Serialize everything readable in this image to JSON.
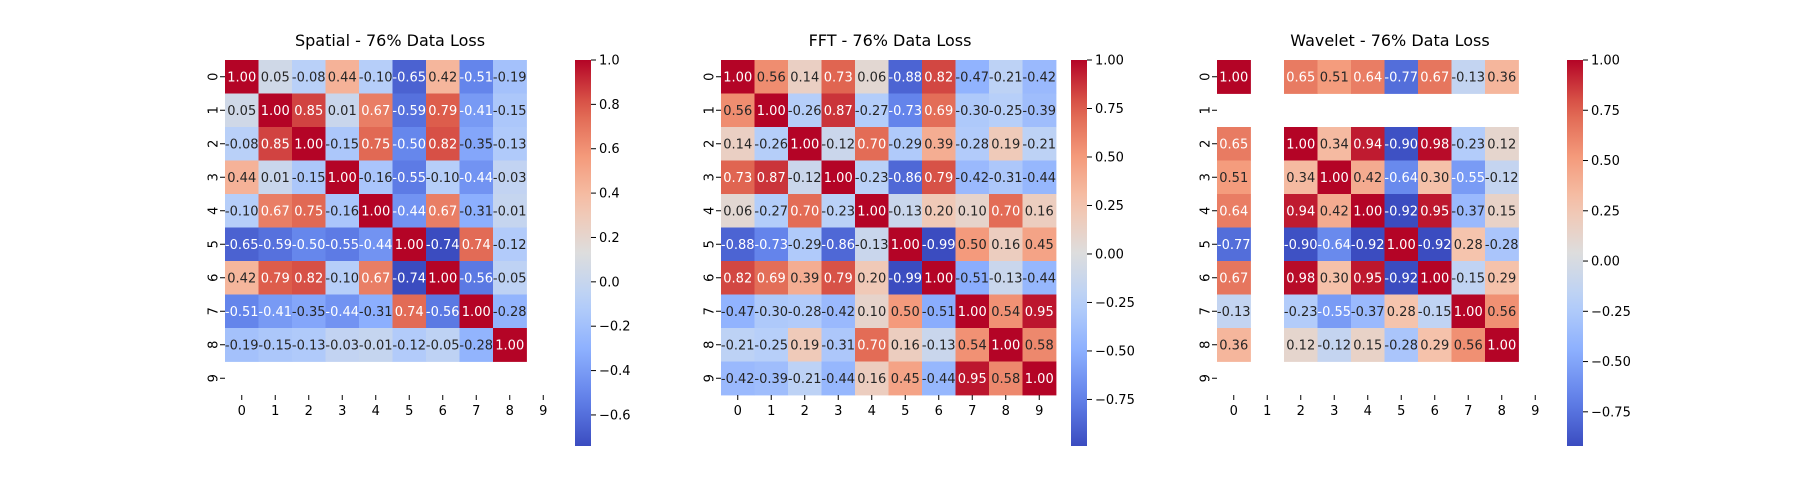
{
  "chart_data": [
    {
      "type": "heatmap",
      "title": "Spatial - 76% Data Loss",
      "categories": [
        "0",
        "1",
        "2",
        "3",
        "4",
        "5",
        "6",
        "7",
        "8",
        "9"
      ],
      "values": [
        [
          1.0,
          0.05,
          -0.08,
          0.44,
          -0.1,
          -0.65,
          0.42,
          -0.51,
          -0.19,
          null
        ],
        [
          0.05,
          1.0,
          0.85,
          0.01,
          0.67,
          -0.59,
          0.79,
          -0.41,
          -0.15,
          null
        ],
        [
          -0.08,
          0.85,
          1.0,
          -0.15,
          0.75,
          -0.5,
          0.82,
          -0.35,
          -0.13,
          null
        ],
        [
          0.44,
          0.01,
          -0.15,
          1.0,
          -0.16,
          -0.55,
          -0.1,
          -0.44,
          -0.03,
          null
        ],
        [
          -0.1,
          0.67,
          0.75,
          -0.16,
          1.0,
          -0.44,
          0.67,
          -0.31,
          -0.01,
          null
        ],
        [
          -0.65,
          -0.59,
          -0.5,
          -0.55,
          -0.44,
          1.0,
          -0.74,
          0.74,
          -0.12,
          null
        ],
        [
          0.42,
          0.79,
          0.82,
          -0.1,
          0.67,
          -0.74,
          1.0,
          -0.56,
          -0.05,
          null
        ],
        [
          -0.51,
          -0.41,
          -0.35,
          -0.44,
          -0.31,
          0.74,
          -0.56,
          1.0,
          -0.28,
          null
        ],
        [
          -0.19,
          -0.15,
          -0.13,
          -0.03,
          -0.01,
          -0.12,
          -0.05,
          -0.28,
          1.0,
          null
        ],
        [
          null,
          null,
          null,
          null,
          null,
          null,
          null,
          null,
          null,
          null
        ]
      ],
      "vmin": -0.74,
      "vmax": 1.0,
      "colorbar_ticks": [
        1.0,
        0.8,
        0.6,
        0.4,
        0.2,
        0.0,
        -0.2,
        -0.4,
        -0.6
      ],
      "colorbar_tick_labels": [
        "1.0",
        "0.8",
        "0.6",
        "0.4",
        "0.2",
        "0.0",
        "−0.2",
        "−0.4",
        "−0.6"
      ],
      "colormap": "coolwarm",
      "annotation_format": "2 decimals"
    },
    {
      "type": "heatmap",
      "title": "FFT - 76% Data Loss",
      "categories": [
        "0",
        "1",
        "2",
        "3",
        "4",
        "5",
        "6",
        "7",
        "8",
        "9"
      ],
      "values": [
        [
          1.0,
          0.56,
          0.14,
          0.73,
          0.06,
          -0.88,
          0.82,
          -0.47,
          -0.21,
          -0.42
        ],
        [
          0.56,
          1.0,
          -0.26,
          0.87,
          -0.27,
          -0.73,
          0.69,
          -0.3,
          -0.25,
          -0.39
        ],
        [
          0.14,
          -0.26,
          1.0,
          -0.12,
          0.7,
          -0.29,
          0.39,
          -0.28,
          0.19,
          -0.21
        ],
        [
          0.73,
          0.87,
          -0.12,
          1.0,
          -0.23,
          -0.86,
          0.79,
          -0.42,
          -0.31,
          -0.44
        ],
        [
          0.06,
          -0.27,
          0.7,
          -0.23,
          1.0,
          -0.13,
          0.2,
          0.1,
          0.7,
          0.16
        ],
        [
          -0.88,
          -0.73,
          -0.29,
          -0.86,
          -0.13,
          1.0,
          -0.99,
          0.5,
          0.16,
          0.45
        ],
        [
          0.82,
          0.69,
          0.39,
          0.79,
          0.2,
          -0.99,
          1.0,
          -0.51,
          -0.13,
          -0.44
        ],
        [
          -0.47,
          -0.3,
          -0.28,
          -0.42,
          0.1,
          0.5,
          -0.51,
          1.0,
          0.54,
          0.95
        ],
        [
          -0.21,
          -0.25,
          0.19,
          -0.31,
          0.7,
          0.16,
          -0.13,
          0.54,
          1.0,
          0.58
        ],
        [
          -0.42,
          -0.39,
          -0.21,
          -0.44,
          0.16,
          0.45,
          -0.44,
          0.95,
          0.58,
          1.0
        ]
      ],
      "vmin": -0.99,
      "vmax": 1.0,
      "colorbar_ticks": [
        1.0,
        0.75,
        0.5,
        0.25,
        0.0,
        -0.25,
        -0.5,
        -0.75
      ],
      "colorbar_tick_labels": [
        "1.00",
        "0.75",
        "0.50",
        "0.25",
        "0.00",
        "−0.25",
        "−0.50",
        "−0.75"
      ],
      "colormap": "coolwarm",
      "annotation_format": "2 decimals"
    },
    {
      "type": "heatmap",
      "title": "Wavelet - 76% Data Loss",
      "categories": [
        "0",
        "1",
        "2",
        "3",
        "4",
        "5",
        "6",
        "7",
        "8",
        "9"
      ],
      "values": [
        [
          1.0,
          null,
          0.65,
          0.51,
          0.64,
          -0.77,
          0.67,
          -0.13,
          0.36,
          null
        ],
        [
          null,
          null,
          null,
          null,
          null,
          null,
          null,
          null,
          null,
          null
        ],
        [
          0.65,
          null,
          1.0,
          0.34,
          0.94,
          -0.9,
          0.98,
          -0.23,
          0.12,
          null
        ],
        [
          0.51,
          null,
          0.34,
          1.0,
          0.42,
          -0.64,
          0.3,
          -0.55,
          -0.12,
          null
        ],
        [
          0.64,
          null,
          0.94,
          0.42,
          1.0,
          -0.92,
          0.95,
          -0.37,
          0.15,
          null
        ],
        [
          -0.77,
          null,
          -0.9,
          -0.64,
          -0.92,
          1.0,
          -0.92,
          0.28,
          -0.28,
          null
        ],
        [
          0.67,
          null,
          0.98,
          0.3,
          0.95,
          -0.92,
          1.0,
          -0.15,
          0.29,
          null
        ],
        [
          -0.13,
          null,
          -0.23,
          -0.55,
          -0.37,
          0.28,
          -0.15,
          1.0,
          0.56,
          null
        ],
        [
          0.36,
          null,
          0.12,
          -0.12,
          0.15,
          -0.28,
          0.29,
          0.56,
          1.0,
          null
        ],
        [
          null,
          null,
          null,
          null,
          null,
          null,
          null,
          null,
          null,
          null
        ]
      ],
      "vmin": -0.92,
      "vmax": 1.0,
      "colorbar_ticks": [
        1.0,
        0.75,
        0.5,
        0.25,
        0.0,
        -0.25,
        -0.5,
        -0.75
      ],
      "colorbar_tick_labels": [
        "1.00",
        "0.75",
        "0.50",
        "0.25",
        "0.00",
        "−0.25",
        "−0.50",
        "−0.75"
      ],
      "colormap": "coolwarm",
      "annotation_format": "2 decimals"
    }
  ],
  "colors": {
    "cold": "#3b4cc0",
    "neutral": "#dddddd",
    "warm": "#b40426",
    "annotation_light": "#ffffff",
    "annotation_dark": "#262626"
  }
}
